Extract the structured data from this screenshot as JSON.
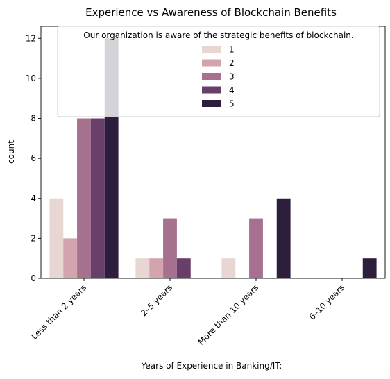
{
  "chart_data": {
    "type": "bar",
    "title": "Experience vs Awareness of Blockchain Benefits",
    "xlabel": "Years of Experience in Banking/IT:",
    "ylabel": "count",
    "categories": [
      "Less than 2 years",
      "2–5 years",
      "More than 10 years",
      "6–10 years"
    ],
    "ylim": [
      0,
      12.6
    ],
    "yticks": [
      0,
      2,
      4,
      6,
      8,
      10,
      12
    ],
    "grid": false,
    "legend": {
      "title": "Our organization is aware of the strategic benefits of blockchain.",
      "placement": "top-center"
    },
    "series": [
      {
        "name": "1",
        "color": "#e8d6d2",
        "values": [
          4,
          1,
          1,
          0
        ]
      },
      {
        "name": "2",
        "color": "#d3a3ae",
        "values": [
          2,
          1,
          0,
          0
        ]
      },
      {
        "name": "3",
        "color": "#a5718f",
        "values": [
          8,
          3,
          3,
          0
        ]
      },
      {
        "name": "4",
        "color": "#693e68",
        "values": [
          8,
          1,
          0,
          0
        ]
      },
      {
        "name": "5",
        "color": "#2d1e3e",
        "values": [
          12,
          0,
          4,
          1
        ]
      }
    ]
  }
}
